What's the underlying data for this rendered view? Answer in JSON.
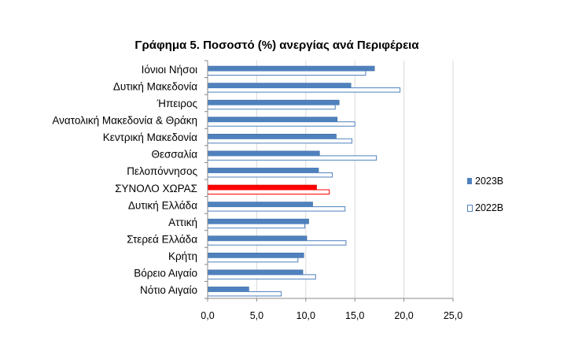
{
  "chart_data": {
    "type": "bar",
    "orientation": "horizontal",
    "title": "Γράφημα 5. Ποσοστό (%) ανεργίας ανά Περιφέρεια",
    "categories": [
      "Ιόνιοι Νήσοι",
      "Δυτική Μακεδονία",
      "Ήπειρος",
      "Ανατολική Μακεδονία & Θράκη",
      "Κεντρική Μακεδονία",
      "Θεσσαλία",
      "Πελοπόννησος",
      "ΣΥΝΟΛΟ ΧΩΡΑΣ",
      "Δυτική Ελλάδα",
      "Αττική",
      "Στερεά Ελλάδα",
      "Κρήτη",
      "Βόρειο Αιγαίο",
      "Νότιο Αιγαίο"
    ],
    "highlight_category": "ΣΥΝΟΛΟ ΧΩΡΑΣ",
    "series": [
      {
        "name": "2023Β",
        "color": "#4f81bd",
        "highlight_color": "#ff0000",
        "style": "filled",
        "values": [
          17.0,
          14.6,
          13.4,
          13.2,
          13.1,
          11.4,
          11.3,
          11.1,
          10.7,
          10.3,
          10.1,
          9.8,
          9.7,
          4.2
        ]
      },
      {
        "name": "2022Β",
        "color": "#4f81bd",
        "highlight_color": "#ff0000",
        "style": "outline",
        "values": [
          16.1,
          19.6,
          13.0,
          15.0,
          14.7,
          17.2,
          12.7,
          12.4,
          14.0,
          9.9,
          14.1,
          9.2,
          11.0,
          7.5
        ]
      }
    ],
    "xlim": [
      0,
      25
    ],
    "xticks": [
      "0,0",
      "5,0",
      "10,0",
      "15,0",
      "20,0",
      "25,0"
    ],
    "grid": true,
    "legend": "right"
  }
}
